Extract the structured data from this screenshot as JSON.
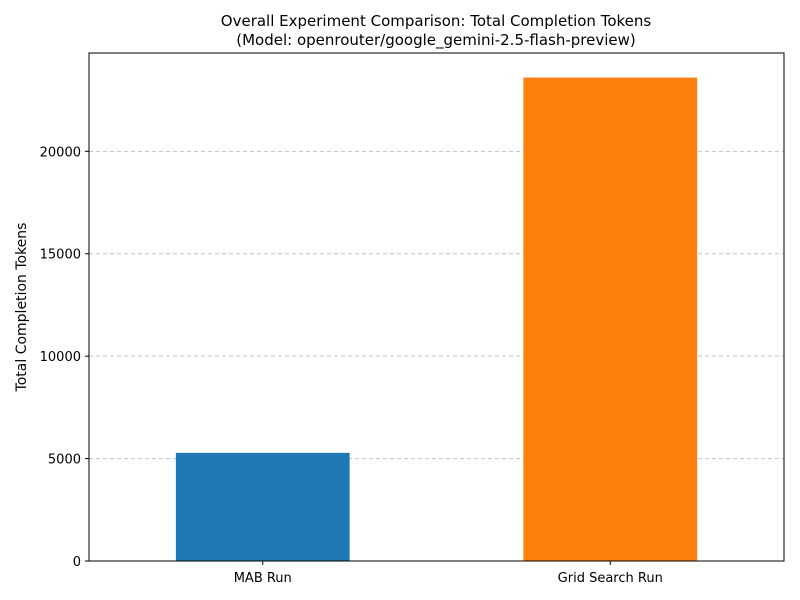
{
  "chart_data": {
    "type": "bar",
    "title": "Overall Experiment Comparison: Total Completion Tokens",
    "subtitle": "(Model: openrouter/google_gemini-2.5-flash-preview)",
    "xlabel": "",
    "ylabel": "Total Completion Tokens",
    "categories": [
      "MAB Run",
      "Grid Search Run"
    ],
    "values": [
      5280,
      23600
    ],
    "colors": [
      "#1f77b4",
      "#ff7f0e"
    ],
    "ylim": [
      0,
      24800
    ],
    "yticks": [
      0,
      5000,
      10000,
      15000,
      20000
    ],
    "ytick_labels": [
      "0",
      "5000",
      "10000",
      "15000",
      "20000"
    ],
    "grid": "y-dashed"
  }
}
